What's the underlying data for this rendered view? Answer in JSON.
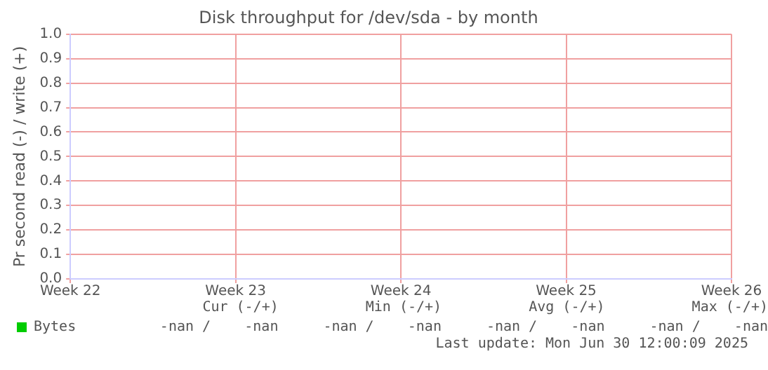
{
  "chart_data": {
    "type": "line",
    "title": "Disk throughput for /dev/sda - by month",
    "ylabel": "Pr second read (-) / write (+)",
    "categories": [
      "Week 22",
      "Week 23",
      "Week 24",
      "Week 25",
      "Week 26"
    ],
    "series": [
      {
        "name": "Bytes",
        "color": "#00cc00",
        "values": [
          null,
          null,
          null,
          null,
          null
        ]
      }
    ],
    "ylim": [
      0,
      1
    ],
    "yticks": [
      {
        "value": 0,
        "label": "0.0"
      },
      {
        "value": 0.1,
        "label": "0.1"
      },
      {
        "value": 0.2,
        "label": "0.2"
      },
      {
        "value": 0.3,
        "label": "0.3"
      },
      {
        "value": 0.4,
        "label": "0.4"
      },
      {
        "value": 0.5,
        "label": "0.5"
      },
      {
        "value": 0.6,
        "label": "0.6"
      },
      {
        "value": 0.7,
        "label": "0.7"
      },
      {
        "value": 0.8,
        "label": "0.8"
      },
      {
        "value": 0.9,
        "label": "0.9"
      },
      {
        "value": 1,
        "label": "1.0"
      }
    ],
    "grid": true,
    "legend": "bottom left",
    "annotations": [
      "Cur (-/+)",
      "Min (-/+)",
      "Avg (-/+)",
      "Max (-/+)",
      "-nan /    -nan",
      "-nan /    -nan",
      "-nan /    -nan",
      "-nan /    -nan",
      "Last update: Mon Jun 30 12:00:09 2025"
    ]
  }
}
